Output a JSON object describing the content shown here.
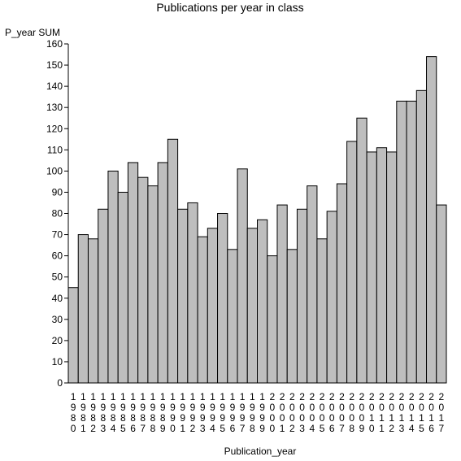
{
  "chart_data": {
    "type": "bar",
    "title": "Publications per year in class",
    "ylabel": "P_year SUM",
    "xlabel": "Publication_year",
    "ylim": [
      0,
      160
    ],
    "y_ticks": [
      0,
      10,
      20,
      30,
      40,
      50,
      60,
      70,
      80,
      90,
      100,
      110,
      120,
      130,
      140,
      150,
      160
    ],
    "grid": false,
    "categories": [
      "1980",
      "1981",
      "1982",
      "1983",
      "1984",
      "1985",
      "1986",
      "1987",
      "1988",
      "1989",
      "1990",
      "1991",
      "1992",
      "1993",
      "1994",
      "1995",
      "1996",
      "1997",
      "1998",
      "1999",
      "2000",
      "2001",
      "2002",
      "2003",
      "2004",
      "2005",
      "2006",
      "2007",
      "2008",
      "2009",
      "2010",
      "2011",
      "2012",
      "2013",
      "2014",
      "2015",
      "2016",
      "2017"
    ],
    "values": [
      45,
      70,
      68,
      82,
      100,
      90,
      104,
      97,
      93,
      104,
      115,
      82,
      85,
      69,
      73,
      80,
      63,
      101,
      73,
      77,
      60,
      84,
      63,
      82,
      93,
      68,
      81,
      94,
      114,
      125,
      109,
      111,
      109,
      133,
      133,
      138,
      154,
      84
    ],
    "colors": {
      "bar_fill": "#bebebe",
      "bar_stroke": "#000000"
    }
  }
}
